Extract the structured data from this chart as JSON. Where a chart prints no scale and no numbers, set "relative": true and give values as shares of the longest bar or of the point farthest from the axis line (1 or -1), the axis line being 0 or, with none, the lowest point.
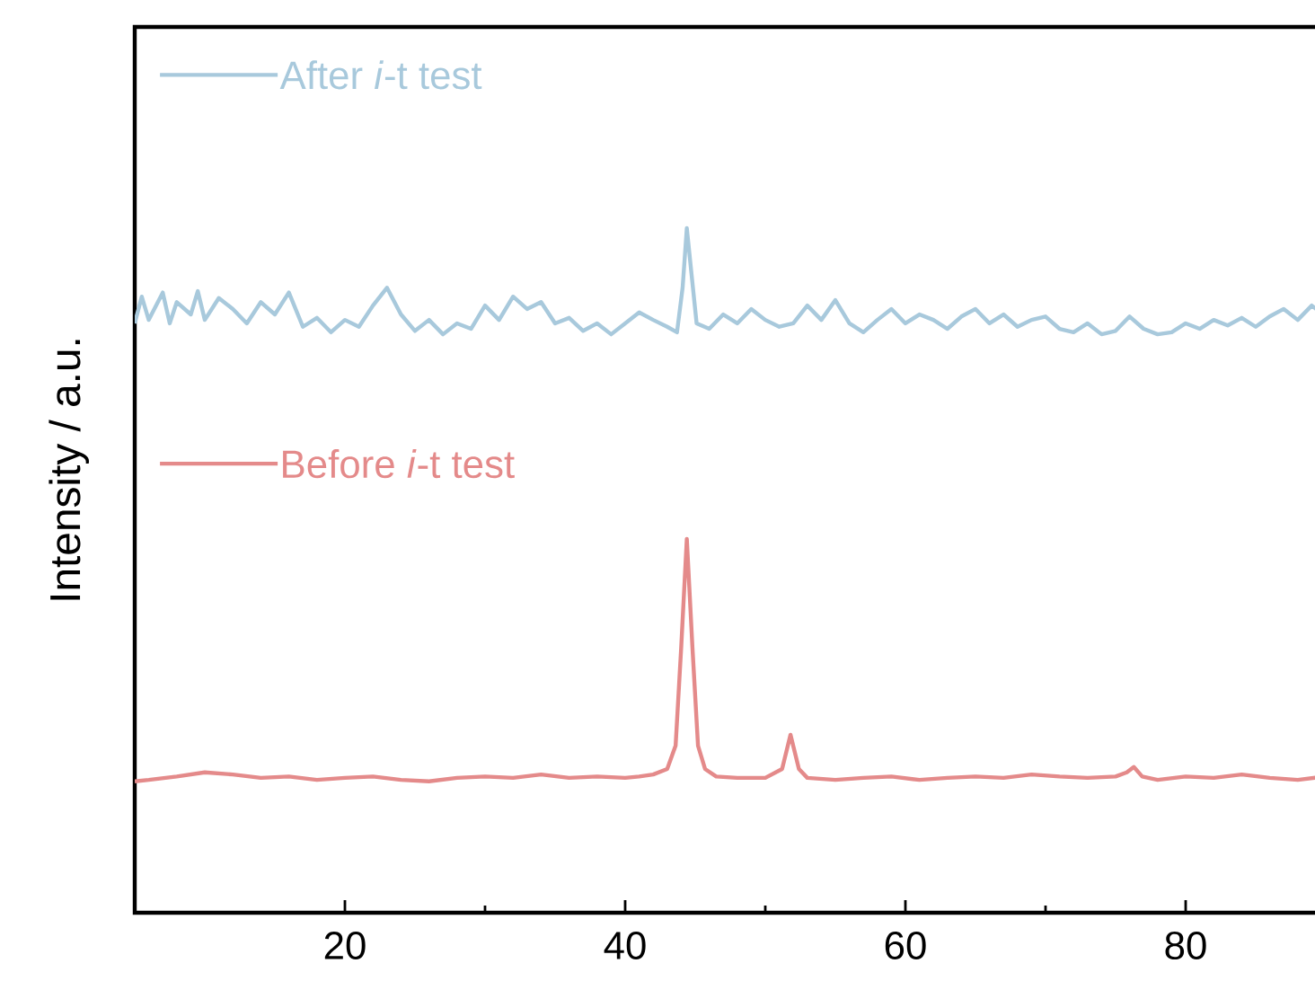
{
  "chart_data": {
    "type": "line",
    "relative": true,
    "ylabel": "Intensity / a.u.",
    "xlim": [
      5,
      90
    ],
    "xticks": [
      20,
      40,
      60,
      80
    ],
    "marker": "none",
    "legend": "top left",
    "line_style": "solid",
    "grid": false,
    "series": [
      {
        "name": "After *i*-t test",
        "color": "#a8c9dc",
        "x": [
          5,
          5.5,
          6,
          7,
          7.5,
          8,
          9,
          9.5,
          10,
          11,
          12,
          13,
          14,
          15,
          16,
          17,
          18,
          19,
          20,
          21,
          22,
          23,
          24,
          25,
          26,
          27,
          28,
          29,
          30,
          31,
          32,
          33,
          34,
          35,
          36,
          37,
          38,
          39,
          40,
          41,
          42,
          43,
          43.7,
          44.1,
          44.4,
          44.7,
          45.1,
          46,
          47,
          48,
          49,
          50,
          51,
          52,
          53,
          54,
          55,
          56,
          57,
          58,
          59,
          60,
          61,
          62,
          63,
          64,
          65,
          66,
          67,
          68,
          69,
          70,
          71,
          72,
          73,
          74,
          75,
          76,
          77,
          78,
          79,
          80,
          81,
          82,
          83,
          84,
          85,
          86,
          87,
          88,
          89,
          90
        ],
        "values": [
          0.861,
          0.9,
          0.866,
          0.906,
          0.861,
          0.892,
          0.874,
          0.908,
          0.866,
          0.898,
          0.882,
          0.861,
          0.892,
          0.874,
          0.906,
          0.856,
          0.869,
          0.848,
          0.866,
          0.856,
          0.887,
          0.913,
          0.874,
          0.85,
          0.866,
          0.845,
          0.861,
          0.853,
          0.887,
          0.866,
          0.9,
          0.882,
          0.892,
          0.861,
          0.869,
          0.85,
          0.861,
          0.845,
          0.861,
          0.877,
          0.866,
          0.856,
          0.848,
          0.913,
          1.0,
          0.94,
          0.861,
          0.853,
          0.874,
          0.861,
          0.882,
          0.866,
          0.856,
          0.861,
          0.887,
          0.866,
          0.895,
          0.861,
          0.848,
          0.866,
          0.882,
          0.861,
          0.874,
          0.866,
          0.853,
          0.871,
          0.882,
          0.861,
          0.874,
          0.856,
          0.866,
          0.871,
          0.853,
          0.848,
          0.861,
          0.845,
          0.85,
          0.871,
          0.853,
          0.845,
          0.848,
          0.861,
          0.853,
          0.866,
          0.858,
          0.869,
          0.856,
          0.871,
          0.882,
          0.866,
          0.887,
          0.871
        ]
      },
      {
        "name": "Before *i*-t test",
        "color": "#e48a8a",
        "x": [
          5,
          6,
          8,
          10,
          12,
          14,
          16,
          18,
          20,
          22,
          24,
          26,
          28,
          30,
          32,
          34,
          36,
          38,
          40,
          41,
          42,
          43,
          43.6,
          44.0,
          44.4,
          44.8,
          45.2,
          45.7,
          46.5,
          48,
          50,
          51.2,
          51.8,
          52.4,
          53,
          55,
          57,
          59,
          61,
          63,
          65,
          67,
          69,
          71,
          73,
          75,
          75.8,
          76.3,
          76.9,
          78,
          80,
          82,
          84,
          86,
          88,
          90
        ],
        "values": [
          0.192,
          0.194,
          0.199,
          0.205,
          0.202,
          0.197,
          0.199,
          0.194,
          0.197,
          0.199,
          0.194,
          0.192,
          0.197,
          0.199,
          0.197,
          0.202,
          0.197,
          0.199,
          0.197,
          0.199,
          0.202,
          0.21,
          0.244,
          0.388,
          0.546,
          0.388,
          0.244,
          0.21,
          0.199,
          0.197,
          0.197,
          0.21,
          0.26,
          0.21,
          0.197,
          0.194,
          0.197,
          0.199,
          0.194,
          0.197,
          0.199,
          0.197,
          0.202,
          0.199,
          0.197,
          0.199,
          0.205,
          0.213,
          0.199,
          0.194,
          0.199,
          0.197,
          0.202,
          0.197,
          0.194,
          0.199
        ]
      }
    ]
  }
}
